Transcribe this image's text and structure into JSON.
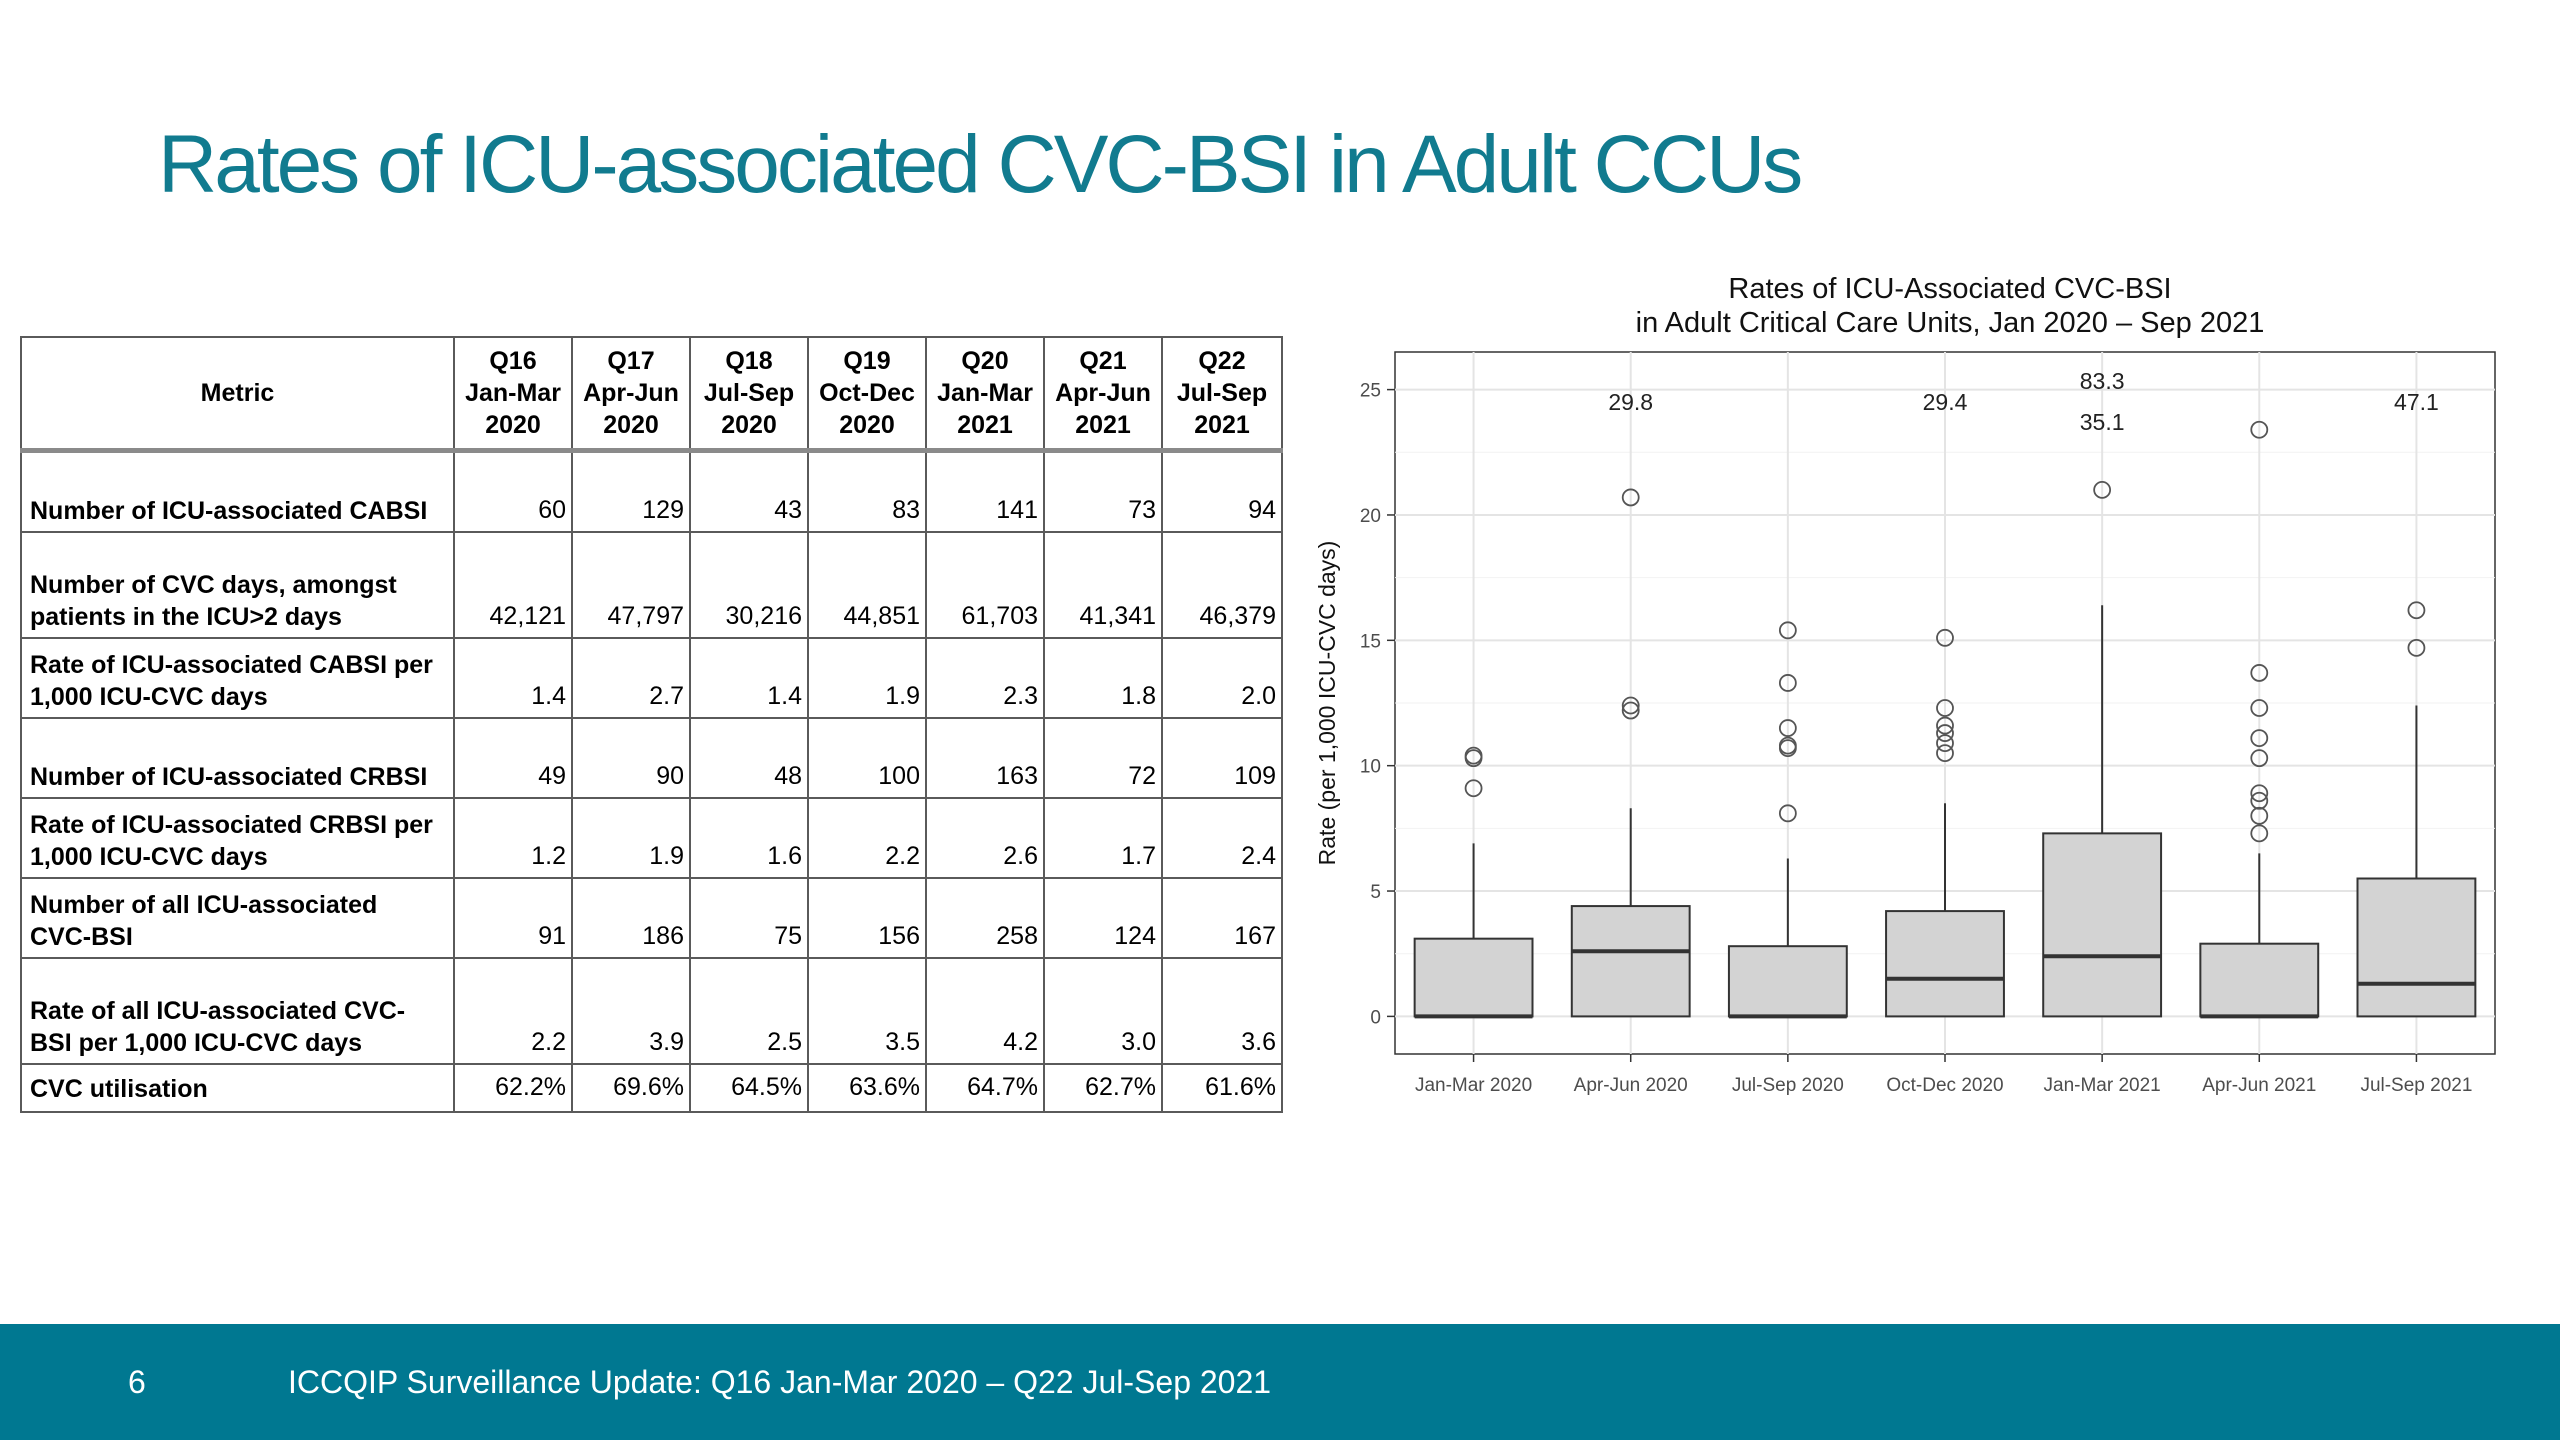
{
  "title": "Rates of ICU-associated CVC-BSI in Adult CCUs",
  "colors": {
    "title": "#117b8f",
    "footer_bg": "#007891",
    "box_fill": "#d3d3d3",
    "box_stroke": "#333333"
  },
  "table": {
    "header_metric": "Metric",
    "quarters": [
      {
        "q": "Q16",
        "months": "Jan-Mar",
        "year": "2020"
      },
      {
        "q": "Q17",
        "months": "Apr-Jun",
        "year": "2020"
      },
      {
        "q": "Q18",
        "months": "Jul-Sep",
        "year": "2020"
      },
      {
        "q": "Q19",
        "months": "Oct-Dec",
        "year": "2020"
      },
      {
        "q": "Q20",
        "months": "Jan-Mar",
        "year": "2021"
      },
      {
        "q": "Q21",
        "months": "Apr-Jun",
        "year": "2021"
      },
      {
        "q": "Q22",
        "months": "Jul-Sep",
        "year": "2021"
      }
    ],
    "rows": [
      {
        "metric": "Number of ICU-associated CABSI",
        "values": [
          "60",
          "129",
          "43",
          "83",
          "141",
          "73",
          "94"
        ]
      },
      {
        "metric": "Number of CVC days, amongst patients in the ICU>2 days",
        "values": [
          "42,121",
          "47,797",
          "30,216",
          "44,851",
          "61,703",
          "41,341",
          "46,379"
        ]
      },
      {
        "metric": "Rate of ICU-associated CABSI per 1,000 ICU-CVC days",
        "values": [
          "1.4",
          "2.7",
          "1.4",
          "1.9",
          "2.3",
          "1.8",
          "2.0"
        ]
      },
      {
        "metric": "Number of ICU-associated CRBSI",
        "values": [
          "49",
          "90",
          "48",
          "100",
          "163",
          "72",
          "109"
        ]
      },
      {
        "metric": "Rate of ICU-associated CRBSI per 1,000 ICU-CVC days",
        "values": [
          "1.2",
          "1.9",
          "1.6",
          "2.2",
          "2.6",
          "1.7",
          "2.4"
        ]
      },
      {
        "metric": "Number of all ICU-associated CVC-BSI",
        "values": [
          "91",
          "186",
          "75",
          "156",
          "258",
          "124",
          "167"
        ]
      },
      {
        "metric": "Rate of all ICU-associated CVC-BSI per 1,000 ICU-CVC days",
        "values": [
          "2.2",
          "3.9",
          "2.5",
          "3.5",
          "4.2",
          "3.0",
          "3.6"
        ]
      },
      {
        "metric": "CVC utilisation",
        "values": [
          "62.2%",
          "69.6%",
          "64.5%",
          "63.6%",
          "64.7%",
          "62.7%",
          "61.6%"
        ]
      }
    ]
  },
  "chart_data": {
    "type": "boxplot",
    "title": "Rates of ICU-Associated CVC-BSI",
    "subtitle": "in Adult Critical Care Units, Jan 2020 – Sep 2021",
    "xlabel": "",
    "ylabel": "Rate (per 1,000 ICU-CVC days)",
    "ylim": [
      -1.5,
      26.5
    ],
    "yticks": [
      0,
      5,
      10,
      15,
      20,
      25
    ],
    "grid": true,
    "categories": [
      "Jan-Mar 2020",
      "Apr-Jun 2020",
      "Jul-Sep 2020",
      "Oct-Dec 2020",
      "Jan-Mar 2021",
      "Apr-Jun 2021",
      "Jul-Sep 2021"
    ],
    "boxes": [
      {
        "q1": 0,
        "median": 0,
        "q3": 3.1,
        "whisker_low": 0,
        "whisker_high": 6.9,
        "outliers": [
          10.3,
          10.4,
          9.1
        ],
        "off_scale": []
      },
      {
        "q1": 0,
        "median": 2.6,
        "q3": 4.4,
        "whisker_low": 0,
        "whisker_high": 8.3,
        "outliers": [
          12.2,
          12.4,
          20.7
        ],
        "off_scale": [
          "29.8"
        ]
      },
      {
        "q1": 0,
        "median": 0,
        "q3": 2.8,
        "whisker_low": 0,
        "whisker_high": 6.3,
        "outliers": [
          8.1,
          10.7,
          10.8,
          11.5,
          13.3,
          15.4
        ],
        "off_scale": []
      },
      {
        "q1": 0,
        "median": 1.5,
        "q3": 4.2,
        "whisker_low": 0,
        "whisker_high": 8.5,
        "outliers": [
          10.5,
          10.9,
          11.3,
          11.6,
          12.3,
          15.1
        ],
        "off_scale": [
          "29.4"
        ]
      },
      {
        "q1": 0,
        "median": 2.4,
        "q3": 7.3,
        "whisker_low": 0,
        "whisker_high": 16.4,
        "outliers": [
          21.0
        ],
        "off_scale": [
          "83.3",
          "35.1"
        ]
      },
      {
        "q1": 0,
        "median": 0,
        "q3": 2.9,
        "whisker_low": 0,
        "whisker_high": 6.5,
        "outliers": [
          7.3,
          8.0,
          8.6,
          8.9,
          10.3,
          11.1,
          12.3,
          13.7,
          23.4
        ],
        "off_scale": []
      },
      {
        "q1": 0,
        "median": 1.3,
        "q3": 5.5,
        "whisker_low": 0,
        "whisker_high": 12.4,
        "outliers": [
          14.7,
          16.2
        ],
        "off_scale": [
          "47.1"
        ]
      }
    ]
  },
  "footer": {
    "page_number": "6",
    "text": "ICCQIP Surveillance Update: Q16 Jan-Mar 2020 – Q22 Jul-Sep 2021"
  }
}
